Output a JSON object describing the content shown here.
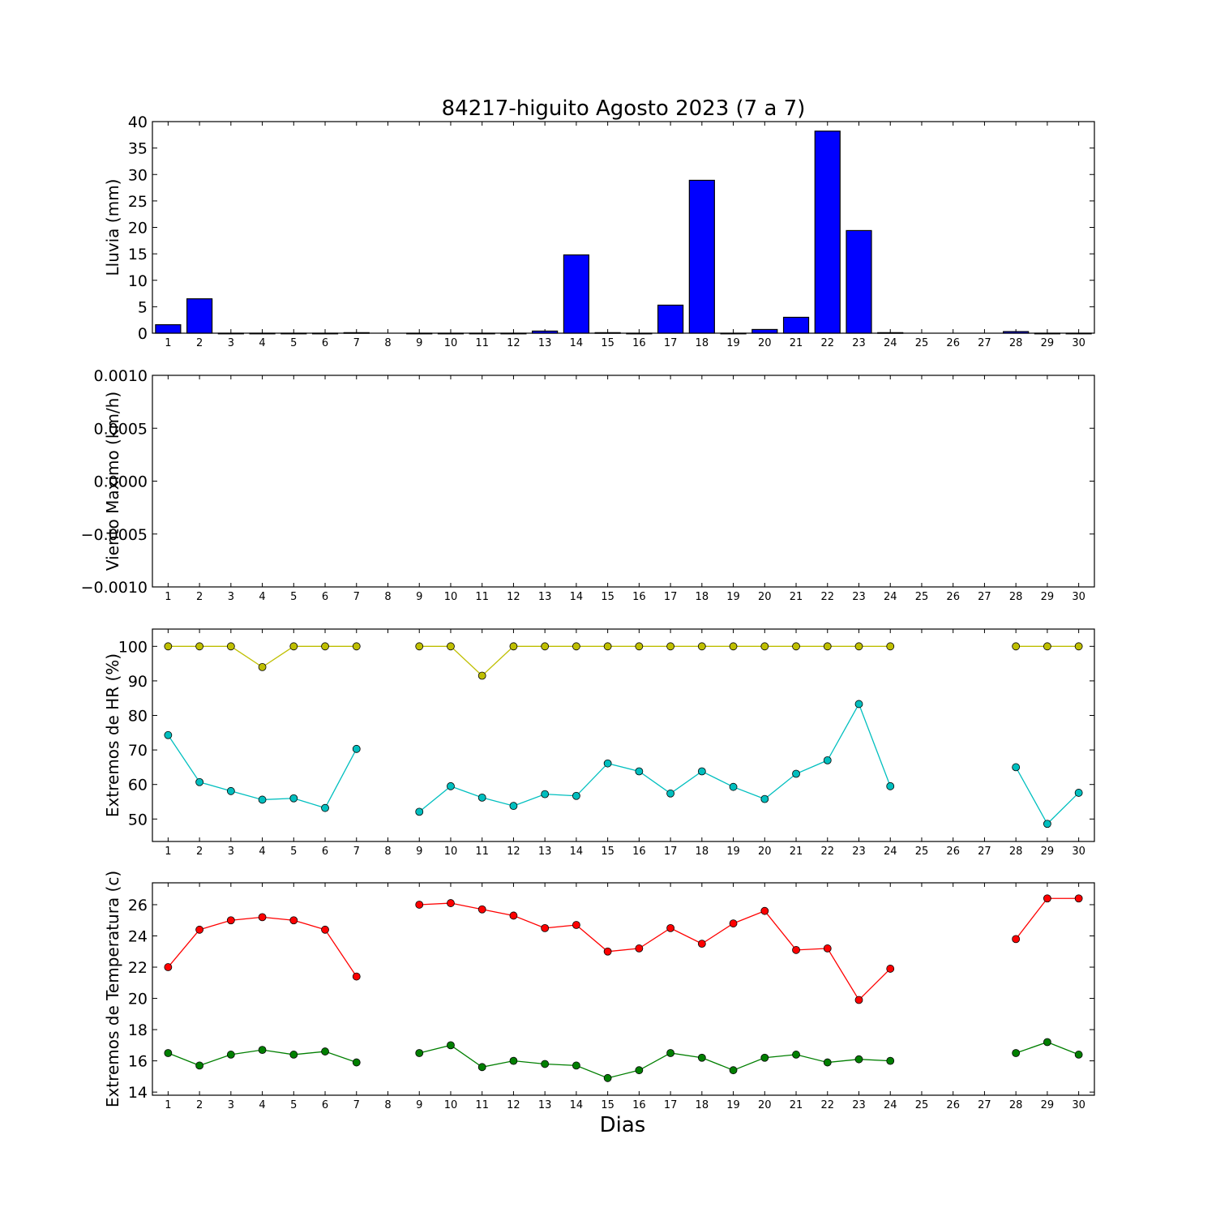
{
  "chart_data": [
    {
      "type": "bar",
      "title": "84217-higuito Agosto 2023  (7 a 7)",
      "ylabel": "Lluvia (mm)",
      "xlabel": "",
      "ylim": [
        0,
        40
      ],
      "yticks": [
        "0",
        "5",
        "10",
        "15",
        "20",
        "25",
        "30",
        "35",
        "40"
      ],
      "x": [
        1,
        2,
        3,
        4,
        5,
        6,
        7,
        8,
        9,
        10,
        11,
        12,
        13,
        14,
        15,
        16,
        17,
        18,
        19,
        20,
        21,
        22,
        23,
        24,
        25,
        26,
        27,
        28,
        29,
        30
      ],
      "values": [
        1.6,
        6.5,
        0,
        0,
        0,
        0,
        0.1,
        null,
        0,
        0,
        0,
        0,
        0.4,
        14.8,
        0.1,
        0,
        5.3,
        28.9,
        0,
        0.7,
        3.0,
        38.2,
        19.4,
        0.1,
        null,
        null,
        null,
        0.3,
        0,
        0
      ],
      "color": "#0000ff"
    },
    {
      "type": "line",
      "ylabel": "Viento Maximo (km/h)",
      "ylim": [
        -0.001,
        0.001
      ],
      "yticks": [
        "0.0010",
        "0.0005",
        "0.0000",
        "−0.0005",
        "−0.0010"
      ],
      "x": [
        1,
        2,
        3,
        4,
        5,
        6,
        7,
        8,
        9,
        10,
        11,
        12,
        13,
        14,
        15,
        16,
        17,
        18,
        19,
        20,
        21,
        22,
        23,
        24,
        25,
        26,
        27,
        28,
        29,
        30
      ],
      "series": []
    },
    {
      "type": "line",
      "ylabel": "Extremos de HR (%)",
      "ylim": [
        43.5,
        105
      ],
      "yticks": [
        "50",
        "60",
        "70",
        "80",
        "90",
        "100"
      ],
      "x": [
        1,
        2,
        3,
        4,
        5,
        6,
        7,
        8,
        9,
        10,
        11,
        12,
        13,
        14,
        15,
        16,
        17,
        18,
        19,
        20,
        21,
        22,
        23,
        24,
        25,
        26,
        27,
        28,
        29,
        30
      ],
      "series": [
        {
          "color": "#bfbf00",
          "values": [
            100,
            100,
            100,
            94,
            100,
            100,
            100,
            null,
            100,
            100,
            91.5,
            100,
            100,
            100,
            100,
            100,
            100,
            100,
            100,
            100,
            100,
            100,
            100,
            100,
            null,
            null,
            null,
            100,
            100,
            100
          ]
        },
        {
          "color": "#00bfbf",
          "values": [
            74.3,
            60.7,
            58.1,
            55.6,
            56,
            53.2,
            70.3,
            null,
            52.1,
            59.5,
            56.2,
            53.8,
            57.2,
            56.7,
            66.1,
            63.8,
            57.4,
            63.8,
            59.3,
            55.8,
            63.1,
            67,
            83.3,
            59.5,
            null,
            null,
            null,
            65,
            48.6,
            57.6
          ]
        }
      ]
    },
    {
      "type": "line",
      "ylabel": "Extremos de Temperatura (c)",
      "xlabel": "Dias",
      "ylim": [
        13.8,
        27.4
      ],
      "yticks": [
        "14",
        "16",
        "18",
        "20",
        "22",
        "24",
        "26"
      ],
      "x": [
        1,
        2,
        3,
        4,
        5,
        6,
        7,
        8,
        9,
        10,
        11,
        12,
        13,
        14,
        15,
        16,
        17,
        18,
        19,
        20,
        21,
        22,
        23,
        24,
        25,
        26,
        27,
        28,
        29,
        30
      ],
      "series": [
        {
          "color": "#ff0000",
          "values": [
            22,
            24.4,
            25,
            25.2,
            25,
            24.4,
            21.4,
            null,
            26,
            26.1,
            25.7,
            25.3,
            24.5,
            24.7,
            23,
            23.2,
            24.5,
            23.5,
            24.8,
            25.6,
            23.1,
            23.2,
            19.9,
            21.9,
            null,
            null,
            null,
            23.8,
            26.4,
            26.4
          ]
        },
        {
          "color": "#007f00",
          "values": [
            16.5,
            15.7,
            16.4,
            16.7,
            16.4,
            16.6,
            15.9,
            null,
            16.5,
            17,
            15.6,
            16,
            15.8,
            15.7,
            14.9,
            15.4,
            16.5,
            16.2,
            15.4,
            16.2,
            16.4,
            15.9,
            16.1,
            16,
            null,
            null,
            null,
            16.5,
            17.2,
            16.4
          ]
        }
      ]
    }
  ]
}
